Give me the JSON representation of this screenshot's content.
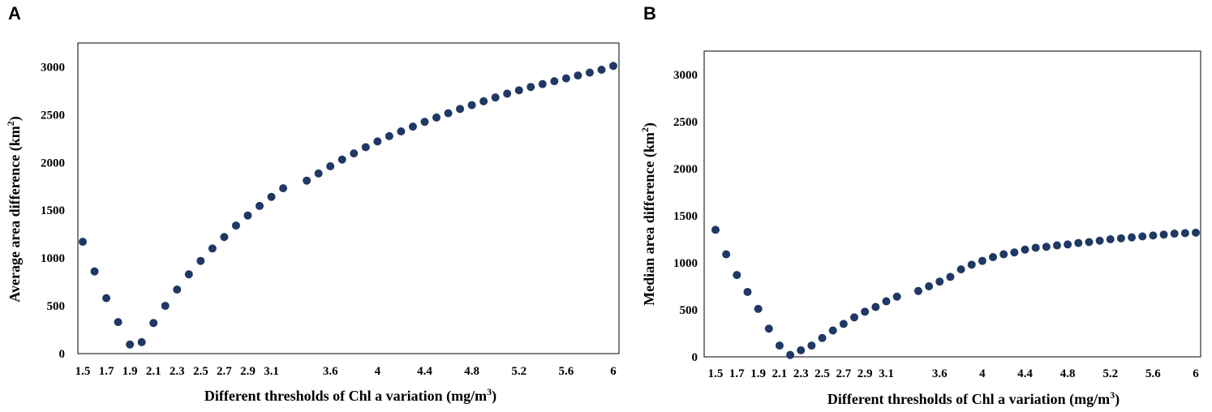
{
  "chart_data": [
    {
      "type": "scatter",
      "panel": "A",
      "xlabel": "Different thresholds of Chl a variation",
      "xunit": "(mg/m",
      "xunit_sup": "3",
      "xunit_close": ")",
      "ylabel": "Average area difference",
      "yunit": "(km",
      "yunit_sup": "2",
      "yunit_close": ")",
      "xlim": [
        1.5,
        6.0
      ],
      "ylim": [
        0,
        3250
      ],
      "x_ticks": [
        "1.5",
        "1.7",
        "1.9",
        "2.1",
        "2.3",
        "2.5",
        "2.7",
        "2.9",
        "3.1",
        "3.6",
        "4",
        "4.4",
        "4.8",
        "5.2",
        "5.6",
        "6"
      ],
      "y_ticks": [
        "0",
        "500",
        "1000",
        "1500",
        "2000",
        "2500",
        "3000"
      ],
      "color": "#1f3864",
      "x": [
        1.5,
        1.6,
        1.7,
        1.8,
        1.9,
        2.0,
        2.1,
        2.2,
        2.3,
        2.4,
        2.5,
        2.6,
        2.7,
        2.8,
        2.9,
        3.0,
        3.1,
        3.2,
        3.4,
        3.5,
        3.6,
        3.7,
        3.8,
        3.9,
        4.0,
        4.1,
        4.2,
        4.3,
        4.4,
        4.5,
        4.6,
        4.7,
        4.8,
        4.9,
        5.0,
        5.1,
        5.2,
        5.3,
        5.4,
        5.5,
        5.6,
        5.7,
        5.8,
        5.9,
        6.0
      ],
      "y": [
        1170,
        860,
        580,
        330,
        95,
        120,
        320,
        500,
        670,
        830,
        970,
        1100,
        1220,
        1340,
        1445,
        1545,
        1640,
        1730,
        1810,
        1885,
        1960,
        2030,
        2095,
        2160,
        2220,
        2275,
        2325,
        2375,
        2425,
        2470,
        2515,
        2560,
        2600,
        2640,
        2680,
        2720,
        2755,
        2790,
        2820,
        2850,
        2880,
        2910,
        2940,
        2970,
        3010
      ]
    },
    {
      "type": "scatter",
      "panel": "B",
      "xlabel": "Different thresholds of Chl a variation",
      "xunit": "(mg/m",
      "xunit_sup": "3",
      "xunit_close": ")",
      "ylabel": "Median area difference",
      "yunit": "(km",
      "yunit_sup": "2",
      "yunit_close": ")",
      "xlim": [
        1.5,
        6.0
      ],
      "ylim": [
        0,
        3250
      ],
      "x_ticks": [
        "1.5",
        "1.7",
        "1.9",
        "2.1",
        "2.3",
        "2.5",
        "2.7",
        "2.9",
        "3.1",
        "3.6",
        "4",
        "4.4",
        "4.8",
        "5.2",
        "5.6",
        "6"
      ],
      "y_ticks": [
        "0",
        "500",
        "1000",
        "1500",
        "2000",
        "2500",
        "3000"
      ],
      "color": "#1f3864",
      "x": [
        1.5,
        1.6,
        1.7,
        1.8,
        1.9,
        2.0,
        2.1,
        2.2,
        2.3,
        2.4,
        2.5,
        2.6,
        2.7,
        2.8,
        2.9,
        3.0,
        3.1,
        3.2,
        3.4,
        3.5,
        3.6,
        3.7,
        3.8,
        3.9,
        4.0,
        4.1,
        4.2,
        4.3,
        4.4,
        4.5,
        4.6,
        4.7,
        4.8,
        4.9,
        5.0,
        5.1,
        5.2,
        5.3,
        5.4,
        5.5,
        5.6,
        5.7,
        5.8,
        5.9,
        6.0
      ],
      "y": [
        1350,
        1090,
        870,
        690,
        510,
        300,
        120,
        20,
        70,
        120,
        200,
        280,
        350,
        420,
        480,
        530,
        590,
        640,
        700,
        750,
        800,
        850,
        930,
        980,
        1020,
        1060,
        1090,
        1110,
        1140,
        1160,
        1170,
        1185,
        1195,
        1210,
        1220,
        1235,
        1250,
        1260,
        1270,
        1280,
        1290,
        1300,
        1310,
        1315,
        1320
      ]
    }
  ]
}
